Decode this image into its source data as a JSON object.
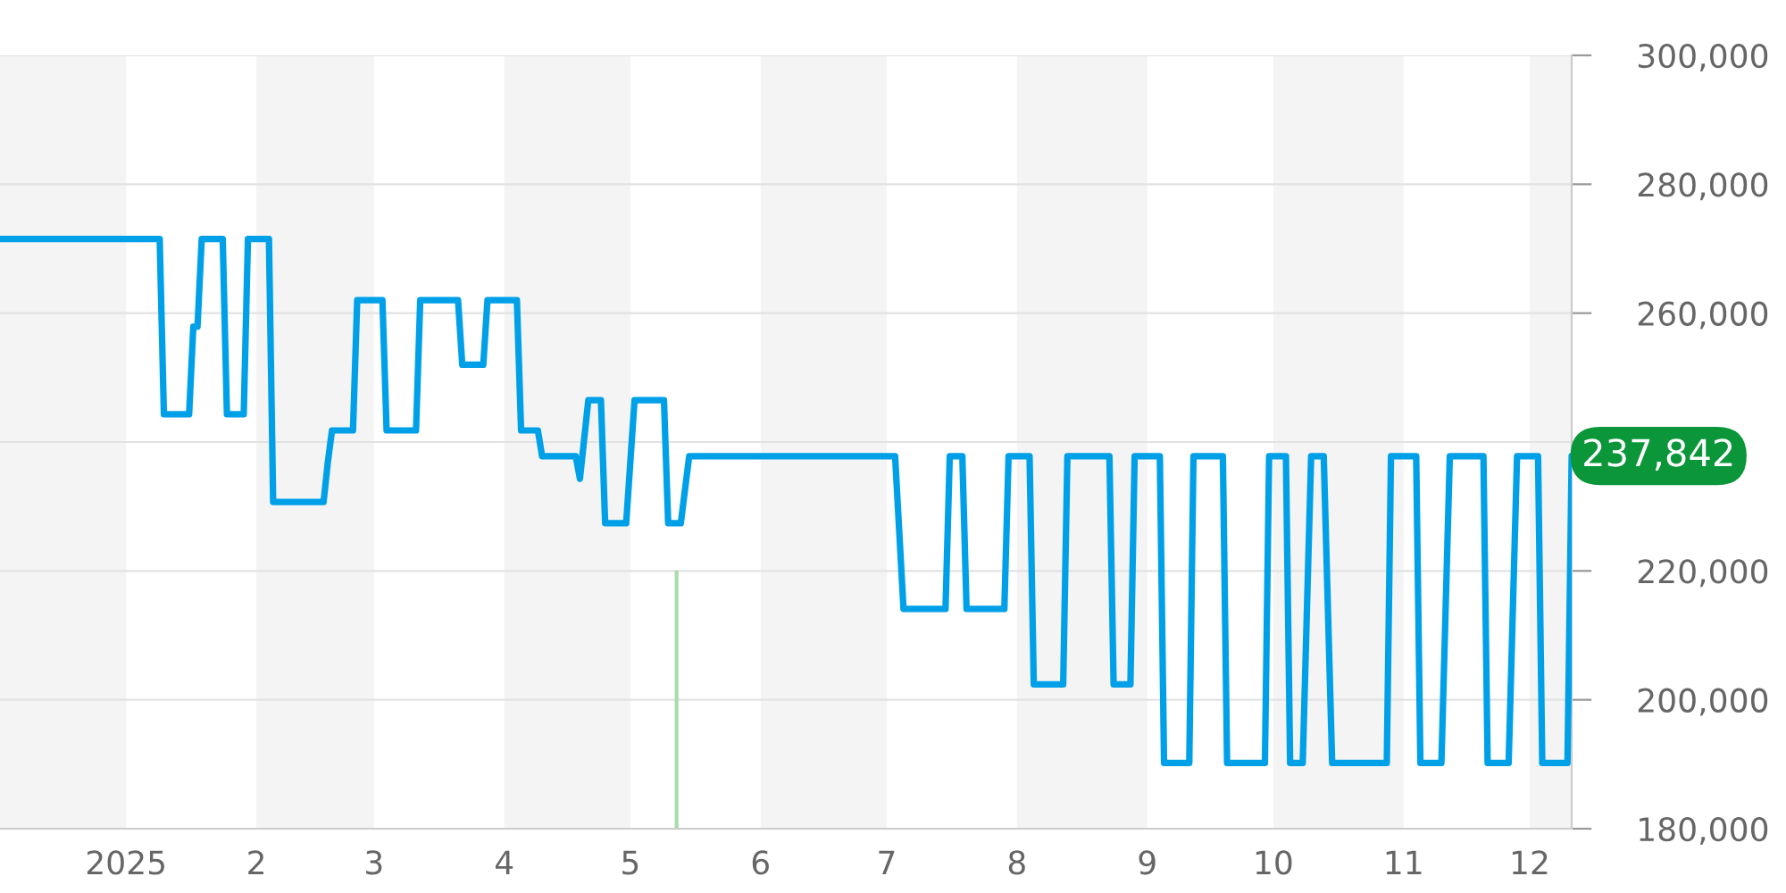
{
  "chart_data": {
    "type": "line",
    "series": [
      {
        "color": "#00a0e9",
        "x": [
          "2024-12-02",
          "2025-01-09",
          "2025-01-10",
          "2025-01-16",
          "2025-01-17",
          "2025-01-18",
          "2025-01-19",
          "2025-01-24",
          "2025-01-25",
          "2025-01-29",
          "2025-01-30",
          "2025-02-04",
          "2025-02-05",
          "2025-02-17",
          "2025-02-18",
          "2025-02-19",
          "2025-02-24",
          "2025-02-25",
          "2025-03-03",
          "2025-03-04",
          "2025-03-11",
          "2025-03-12",
          "2025-03-21",
          "2025-03-22",
          "2025-03-27",
          "2025-03-28",
          "2025-04-04",
          "2025-04-05",
          "2025-04-09",
          "2025-04-10",
          "2025-04-18",
          "2025-04-19",
          "2025-04-21",
          "2025-04-24",
          "2025-04-25",
          "2025-04-30",
          "2025-05-02",
          "2025-05-09",
          "2025-05-10",
          "2025-05-13",
          "2025-05-15",
          "2025-07-03",
          "2025-07-05",
          "2025-07-15",
          "2025-07-16",
          "2025-07-19",
          "2025-07-20",
          "2025-07-29",
          "2025-07-30",
          "2025-08-04",
          "2025-08-05",
          "2025-08-12",
          "2025-08-13",
          "2025-08-23",
          "2025-08-24",
          "2025-08-28",
          "2025-08-29",
          "2025-09-04",
          "2025-09-05",
          "2025-09-11",
          "2025-09-12",
          "2025-09-19",
          "2025-09-20",
          "2025-09-29",
          "2025-09-30",
          "2025-10-04",
          "2025-10-05",
          "2025-10-08",
          "2025-10-10",
          "2025-10-13",
          "2025-10-15",
          "2025-10-28",
          "2025-10-29",
          "2025-11-04",
          "2025-11-05",
          "2025-11-10",
          "2025-11-12",
          "2025-11-20",
          "2025-11-21",
          "2025-11-26",
          "2025-11-28",
          "2025-12-03",
          "2025-12-04",
          "2025-12-10",
          "2025-12-11"
        ],
        "values": [
          271500,
          271500,
          244300,
          244300,
          257900,
          257900,
          271500,
          271500,
          244300,
          244300,
          271500,
          271500,
          230700,
          230700,
          236800,
          241800,
          241800,
          262000,
          262000,
          241800,
          241800,
          262000,
          262000,
          252000,
          252000,
          262000,
          262000,
          241800,
          241800,
          237800,
          237800,
          234300,
          246500,
          246500,
          227400,
          227400,
          246500,
          246500,
          227400,
          227400,
          237800,
          237800,
          214100,
          214100,
          237800,
          237800,
          214100,
          214100,
          237800,
          237800,
          202400,
          202400,
          237800,
          237800,
          202400,
          202400,
          237800,
          237800,
          190200,
          190200,
          237800,
          237800,
          190200,
          190200,
          237800,
          237800,
          190200,
          190200,
          237800,
          237800,
          190200,
          190200,
          237800,
          237800,
          190200,
          190200,
          237800,
          237800,
          190200,
          190200,
          237800,
          237800,
          190200,
          190200,
          237842
        ]
      },
      {
        "type": "bar",
        "color": "#a8dcaa",
        "x": [
          "2025-05-12"
        ],
        "values": [
          220000
        ]
      }
    ],
    "xlim": [
      "2024-12-02",
      "2025-12-11"
    ],
    "xticks": [
      {
        "value": "2025-01-01",
        "label": "2025"
      },
      {
        "value": "2025-02-01",
        "label": "2"
      },
      {
        "value": "2025-03-01",
        "label": "3"
      },
      {
        "value": "2025-04-01",
        "label": "4"
      },
      {
        "value": "2025-05-01",
        "label": "5"
      },
      {
        "value": "2025-06-01",
        "label": "6"
      },
      {
        "value": "2025-07-01",
        "label": "7"
      },
      {
        "value": "2025-08-01",
        "label": "8"
      },
      {
        "value": "2025-09-01",
        "label": "9"
      },
      {
        "value": "2025-10-01",
        "label": "10"
      },
      {
        "value": "2025-11-01",
        "label": "11"
      },
      {
        "value": "2025-12-01",
        "label": "12"
      }
    ],
    "ylim": [
      180000,
      300000
    ],
    "yticks": [
      {
        "value": 180000,
        "label": "180,000"
      },
      {
        "value": 200000,
        "label": "200,000"
      },
      {
        "value": 220000,
        "label": "220,000"
      },
      {
        "value": 240000,
        "label": null
      },
      {
        "value": 260000,
        "label": "260,000"
      },
      {
        "value": 280000,
        "label": "280,000"
      },
      {
        "value": 300000,
        "label": "300,000"
      }
    ],
    "bands": [
      {
        "axis": "x",
        "from": "2024-12-02",
        "to": "2025-01-01",
        "color": "#f4f4f4"
      },
      {
        "axis": "x",
        "from": "2025-02-01",
        "to": "2025-03-01",
        "color": "#f4f4f4"
      },
      {
        "axis": "x",
        "from": "2025-04-01",
        "to": "2025-05-01",
        "color": "#f4f4f4"
      },
      {
        "axis": "x",
        "from": "2025-06-01",
        "to": "2025-07-01",
        "color": "#f4f4f4"
      },
      {
        "axis": "x",
        "from": "2025-08-01",
        "to": "2025-09-01",
        "color": "#f4f4f4"
      },
      {
        "axis": "x",
        "from": "2025-10-01",
        "to": "2025-11-01",
        "color": "#f4f4f4"
      },
      {
        "axis": "x",
        "from": "2025-12-01",
        "to": "2025-12-11",
        "color": "#f4f4f4"
      }
    ],
    "annotations": [
      {
        "text": "237,842",
        "x": "2025-12-11",
        "y": 237842
      }
    ],
    "grid": "y",
    "line_style": "solid",
    "marker": "none"
  }
}
